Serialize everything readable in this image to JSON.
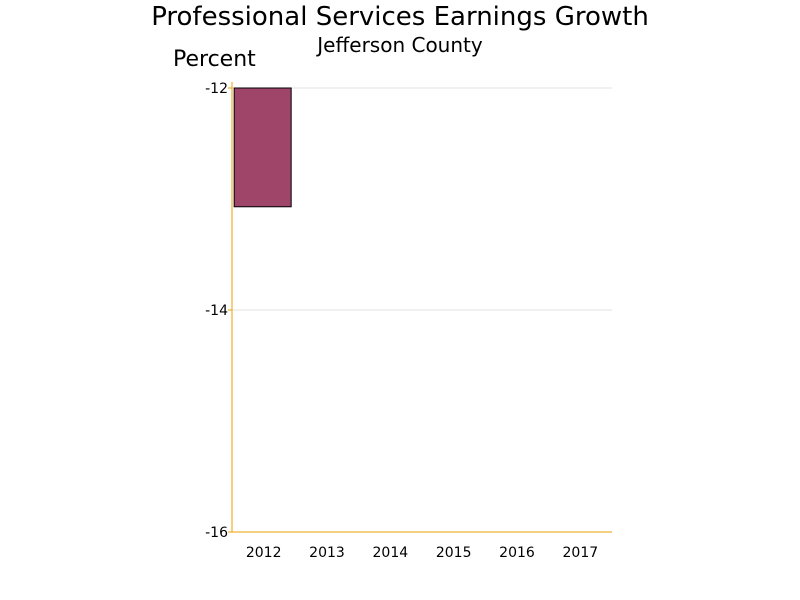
{
  "chart_data": {
    "type": "bar",
    "title": "Professional Services Earnings Growth",
    "subtitle": "Jefferson County",
    "ylabel": "Percent",
    "xlabel": "",
    "categories": [
      "2012",
      "2013",
      "2014",
      "2015",
      "2016",
      "2017"
    ],
    "values": [
      -13.07,
      null,
      null,
      null,
      null,
      null
    ],
    "ylim": [
      -16,
      -12
    ],
    "yticks": [
      -12,
      -14,
      -16
    ],
    "grid": true,
    "legend": "none",
    "colors": {
      "bar": "#a0456a",
      "bar_outline": "#000000",
      "axis": "#e8a200",
      "grid": "#e0e0e0"
    }
  }
}
